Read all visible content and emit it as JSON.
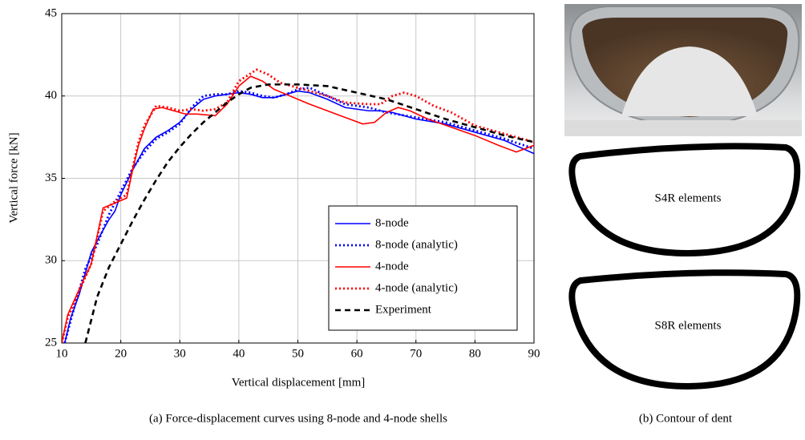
{
  "chart_data": {
    "type": "line",
    "xlabel": "Vertical displacement [mm]",
    "ylabel": "Vertical force [kN]",
    "xlim": [
      10,
      90
    ],
    "ylim": [
      25,
      45
    ],
    "xticks": [
      10,
      20,
      30,
      40,
      50,
      60,
      70,
      80,
      90
    ],
    "yticks": [
      25,
      30,
      35,
      40,
      45
    ],
    "grid": true,
    "legend": "lower right",
    "series": [
      {
        "name": "8-node",
        "color": "#0000ff",
        "style": "solid",
        "x": [
          10.5,
          11.5,
          13,
          15,
          16,
          18,
          19,
          20,
          22,
          24,
          26,
          28,
          30,
          32,
          34,
          36,
          38,
          40,
          42,
          44,
          46,
          48,
          50,
          52,
          55,
          58,
          62,
          64,
          66,
          70,
          75,
          80,
          85,
          90
        ],
        "values": [
          25,
          26.5,
          28,
          30.5,
          31.2,
          32.5,
          33,
          34,
          35.5,
          36.8,
          37.5,
          37.9,
          38.4,
          39.2,
          39.8,
          40.0,
          40.1,
          40.2,
          40.1,
          39.9,
          39.9,
          40.1,
          40.3,
          40.2,
          39.8,
          39.3,
          39.1,
          39.1,
          39.0,
          38.6,
          38.3,
          37.8,
          37.3,
          36.5
        ]
      },
      {
        "name": "8-node (analytic)",
        "color": "#0000ff",
        "style": "dotted",
        "x": [
          10.5,
          12,
          14,
          16,
          18,
          20,
          22,
          24,
          26,
          28,
          30,
          32,
          34,
          36,
          38,
          40,
          42,
          44,
          46,
          48,
          50,
          52,
          55,
          58,
          62,
          65,
          70,
          75,
          80,
          85,
          90
        ],
        "values": [
          25,
          27,
          29.5,
          31,
          32.8,
          34.2,
          35.6,
          36.6,
          37.4,
          37.8,
          38.3,
          39.3,
          40.0,
          40.1,
          40.1,
          40.3,
          40.2,
          40.0,
          39.9,
          40.1,
          40.4,
          40.5,
          40.0,
          39.5,
          39.3,
          39.0,
          38.7,
          38.4,
          37.9,
          37.4,
          36.8
        ]
      },
      {
        "name": "4-node",
        "color": "#ff0000",
        "style": "solid",
        "x": [
          10,
          11,
          13,
          15,
          17,
          19,
          21,
          22,
          23,
          24,
          25.5,
          27,
          29,
          31,
          33,
          36,
          38,
          40,
          42,
          44,
          46,
          48,
          50,
          52,
          55,
          58,
          61,
          63,
          65,
          67,
          69,
          72,
          76,
          80,
          84,
          87,
          90
        ],
        "values": [
          25,
          26.7,
          28.3,
          29.8,
          33.2,
          33.5,
          33.8,
          35.5,
          37,
          38,
          39.2,
          39.3,
          39.1,
          38.9,
          38.9,
          38.8,
          39.5,
          40.6,
          41.2,
          40.9,
          40.4,
          40.1,
          39.8,
          39.5,
          39.1,
          38.7,
          38.3,
          38.4,
          39.0,
          39.3,
          39.1,
          38.6,
          38.1,
          37.6,
          37.0,
          36.6,
          37.0
        ]
      },
      {
        "name": "4-node (analytic)",
        "color": "#ff0000",
        "style": "dotted",
        "x": [
          10,
          11,
          13,
          15,
          17,
          19,
          21,
          22,
          23,
          24,
          26,
          28,
          30,
          32,
          34,
          36,
          38,
          40,
          43,
          45,
          47,
          50,
          52,
          55,
          58,
          62,
          64,
          66,
          68,
          70,
          73,
          76,
          80,
          85,
          90
        ],
        "values": [
          25,
          26.5,
          28.2,
          29.8,
          33.0,
          33.6,
          34.0,
          35.6,
          37.2,
          38.2,
          39.4,
          39.3,
          39.1,
          39.2,
          39.1,
          39.2,
          39.6,
          40.9,
          41.6,
          41.3,
          40.8,
          40.5,
          40.3,
          40.0,
          39.6,
          39.5,
          39.5,
          40.0,
          40.2,
          40.0,
          39.4,
          39.0,
          38.2,
          37.7,
          37.2
        ]
      },
      {
        "name": "Experiment",
        "color": "#000000",
        "style": "dashed",
        "x": [
          14,
          16,
          18,
          20,
          22,
          24,
          26,
          28,
          30,
          32,
          34,
          36,
          38,
          40,
          42,
          45,
          50,
          55,
          60,
          65,
          70,
          75,
          80,
          85,
          90
        ],
        "values": [
          25,
          27.8,
          29.6,
          31.0,
          32.4,
          33.7,
          34.9,
          36.0,
          36.9,
          37.7,
          38.4,
          39.0,
          39.6,
          40.1,
          40.5,
          40.7,
          40.7,
          40.6,
          40.2,
          39.8,
          39.2,
          38.6,
          38.1,
          37.6,
          37.2
        ]
      }
    ]
  },
  "panel_b": {
    "labels": [
      "S4R elements",
      "S8R elements"
    ]
  },
  "captions": {
    "a": "(a) Force-displacement curves using 8-node and 4-node shells",
    "b": "(b) Contour of dent"
  }
}
